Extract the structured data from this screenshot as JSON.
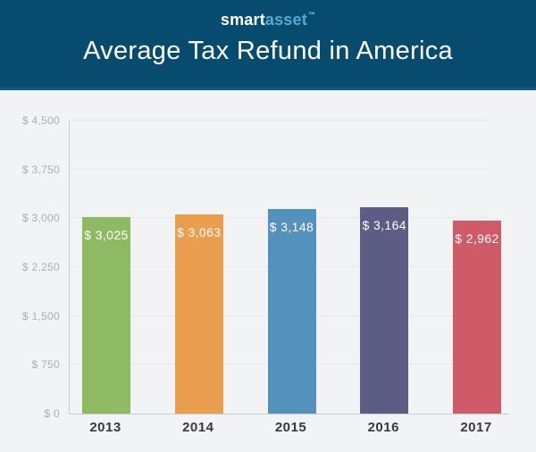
{
  "header": {
    "logo": {
      "smart": "smart",
      "asset": "asset",
      "trademark": "™"
    },
    "title": "Average Tax Refund in America"
  },
  "chart_data": {
    "type": "bar",
    "title": "Average Tax Refund in America",
    "categories": [
      "2013",
      "2014",
      "2015",
      "2016",
      "2017"
    ],
    "values": [
      3025,
      3063,
      3148,
      3164,
      2962
    ],
    "bar_labels": [
      "$ 3,025",
      "$ 3,063",
      "$ 3,148",
      "$ 3,164",
      "$ 2,962"
    ],
    "bar_colors": [
      "#8dba63",
      "#ea9e50",
      "#5591bd",
      "#5c5c84",
      "#cf5b68"
    ],
    "xlabel": "",
    "ylabel": "",
    "ylim": [
      0,
      4500
    ],
    "yticks": [
      0,
      750,
      1500,
      2250,
      3000,
      3750,
      4500
    ],
    "ytick_labels": [
      "$ 0",
      "$ 750",
      "$ 1,500",
      "$ 2,250",
      "$ 3,000",
      "$ 3,750",
      "$ 4,500"
    ],
    "grid": true,
    "legend": false,
    "value_labels_position": "inside-top"
  },
  "colors": {
    "header_bg": "#074b6e",
    "header_border": "#175a7c",
    "logo_smart": "#ffffff",
    "logo_asset": "#56a9d6",
    "page_bg": "#f2f3f5",
    "gridline": "#e7e8ea",
    "axis_line": "#c9ccd1",
    "ytick_text": "#a9aeb6",
    "xtick_text": "#363a40",
    "value_text": "#ffffff"
  }
}
